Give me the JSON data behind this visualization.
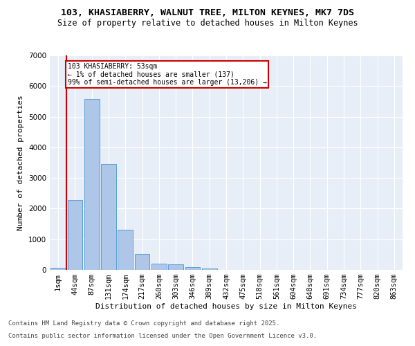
{
  "title_line1": "103, KHASIABERRY, WALNUT TREE, MILTON KEYNES, MK7 7DS",
  "title_line2": "Size of property relative to detached houses in Milton Keynes",
  "xlabel": "Distribution of detached houses by size in Milton Keynes",
  "ylabel": "Number of detached properties",
  "categories": [
    "1sqm",
    "44sqm",
    "87sqm",
    "131sqm",
    "174sqm",
    "217sqm",
    "260sqm",
    "303sqm",
    "346sqm",
    "389sqm",
    "432sqm",
    "475sqm",
    "518sqm",
    "561sqm",
    "604sqm",
    "648sqm",
    "691sqm",
    "734sqm",
    "777sqm",
    "820sqm",
    "863sqm"
  ],
  "values": [
    75,
    2280,
    5580,
    3450,
    1320,
    510,
    210,
    175,
    100,
    55,
    0,
    0,
    0,
    0,
    0,
    0,
    0,
    0,
    0,
    0,
    0
  ],
  "bar_color": "#aec6e8",
  "bar_edge_color": "#5a9fd4",
  "vline_x": 0.5,
  "vline_color": "#cc0000",
  "annotation_text": "103 KHASIABERRY: 53sqm\n← 1% of detached houses are smaller (137)\n99% of semi-detached houses are larger (13,206) →",
  "annotation_box_color": "#cc0000",
  "ylim": [
    0,
    7000
  ],
  "yticks": [
    0,
    1000,
    2000,
    3000,
    4000,
    5000,
    6000,
    7000
  ],
  "bg_color": "#e8eef7",
  "footer_line1": "Contains HM Land Registry data © Crown copyright and database right 2025.",
  "footer_line2": "Contains public sector information licensed under the Open Government Licence v3.0.",
  "title1_fontsize": 9.5,
  "title2_fontsize": 8.5,
  "axis_label_fontsize": 8,
  "tick_fontsize": 7.5,
  "footer_fontsize": 6.5
}
